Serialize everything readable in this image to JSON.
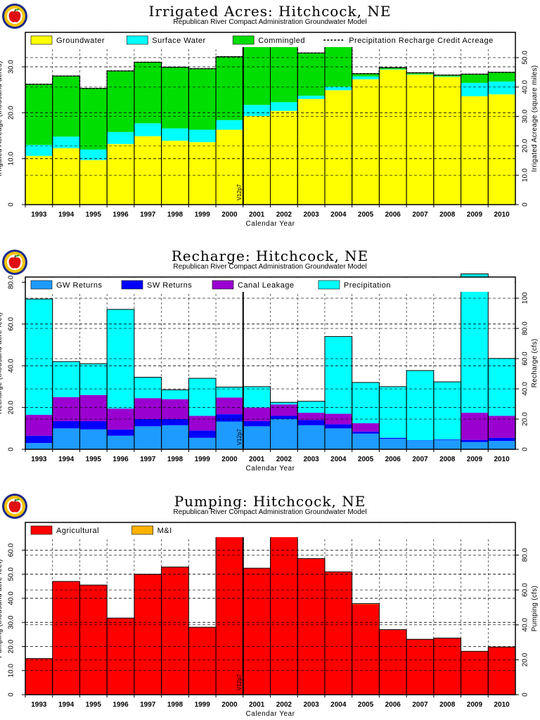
{
  "charts_meta": {
    "model_name": "Republican River Compact Administration Groundwater Model",
    "xlabel": "Calendar Year",
    "marker_text": "V12p7"
  },
  "chart_data": [
    {
      "id": "irrigated",
      "type": "area",
      "stacked": true,
      "title": "Irrigated Acres: Hitchcock, NE",
      "subtitle": "Republican River Compact Administration Groundwater Model",
      "xlabel": "Calendar Year",
      "ylabel": "Irrigated Acreage (thousand acres)",
      "ylabel_right": "Irrigated Acreage (square miles)",
      "categories": [
        "1993",
        "1994",
        "1995",
        "1996",
        "1997",
        "1998",
        "1999",
        "2000",
        "2001",
        "2002",
        "2003",
        "2004",
        "2005",
        "2006",
        "2007",
        "2008",
        "2009",
        "2010"
      ],
      "ylim": [
        0,
        37.5
      ],
      "yticks": [
        0,
        10.0,
        20.0,
        30.0
      ],
      "ytick_labels": [
        "0",
        "10.0",
        "20.0",
        "30.0"
      ],
      "y2lim": [
        0,
        58.6
      ],
      "y2ticks": [
        0,
        10.0,
        20.0,
        30.0,
        40.0,
        50.0
      ],
      "y2tick_labels": [
        "0",
        "10.0",
        "20.0",
        "30.0",
        "40.0",
        "50.0"
      ],
      "grid": true,
      "legend_position": "top",
      "series": [
        {
          "name": "Groundwater",
          "color": "#ffff00",
          "values": [
            10.6,
            12.3,
            9.7,
            13.2,
            14.9,
            13.9,
            13.6,
            16.3,
            19.3,
            20.4,
            23.0,
            24.9,
            27.3,
            29.4,
            28.3,
            27.8,
            23.6,
            24.0
          ]
        },
        {
          "name": "Surface Water",
          "color": "#00ffff",
          "values": [
            2.4,
            2.5,
            2.3,
            2.6,
            2.8,
            2.7,
            2.7,
            2.1,
            2.4,
            1.9,
            0.7,
            0.8,
            0.6,
            0.1,
            0.1,
            0.1,
            2.9,
            2.8
          ]
        },
        {
          "name": "Commingled",
          "color": "#00dd00",
          "values": [
            13.2,
            13.2,
            13.3,
            13.3,
            13.3,
            13.3,
            13.3,
            13.8,
            13.3,
            12.7,
            9.3,
            9.3,
            0.6,
            0.3,
            0.3,
            0.3,
            1.9,
            2.0
          ]
        }
      ],
      "line_series": {
        "name": "Precipitation Recharge Credit Acreage",
        "color": "#000000",
        "values": [
          26.2,
          28.0,
          25.3,
          29.1,
          31.0,
          29.9,
          29.6,
          32.2,
          35.0,
          35.0,
          33.0,
          35.0,
          28.5,
          29.8,
          28.7,
          28.2,
          28.4,
          28.8
        ]
      },
      "marker_year": "2001",
      "marker_text": "V12p7"
    },
    {
      "id": "recharge",
      "type": "area",
      "stacked": true,
      "title": "Recharge: Hitchcock, NE",
      "subtitle": "Republican River Compact Administration Groundwater Model",
      "xlabel": "Calendar Year",
      "ylabel": "Recharge (thousand acre-feet)",
      "ylabel_right": "Recharge (cfs)",
      "categories": [
        "1993",
        "1994",
        "1995",
        "1996",
        "1997",
        "1998",
        "1999",
        "2000",
        "2001",
        "2002",
        "2003",
        "2004",
        "2005",
        "2006",
        "2007",
        "2008",
        "2009",
        "2010"
      ],
      "ylim": [
        0,
        82.5
      ],
      "yticks": [
        0,
        20.0,
        40.0,
        60.0,
        80.0
      ],
      "ytick_labels": [
        "0",
        "20.0",
        "40.0",
        "60.0",
        "80.0"
      ],
      "y2lim": [
        0,
        114
      ],
      "y2ticks": [
        0,
        20.0,
        40.0,
        60.0,
        80.0,
        100
      ],
      "y2tick_labels": [
        "0",
        "20.0",
        "40.0",
        "60.0",
        "80.0",
        "100"
      ],
      "grid": true,
      "legend_position": "top",
      "series": [
        {
          "name": "GW Returns",
          "color": "#1e9bff",
          "values": [
            3.0,
            10.0,
            9.5,
            6.5,
            11.0,
            11.5,
            5.5,
            13.3,
            11.0,
            14.5,
            11.5,
            10.0,
            7.5,
            5.0,
            4.0,
            4.5,
            3.5,
            4.0
          ]
        },
        {
          "name": "SW Returns",
          "color": "#0000ff",
          "values": [
            3.5,
            3.5,
            4.0,
            3.0,
            3.5,
            3.0,
            3.5,
            3.5,
            2.5,
            1.5,
            2.5,
            2.0,
            1.0,
            0.5,
            0.2,
            0.3,
            1.0,
            1.5
          ]
        },
        {
          "name": "Canal Leakage",
          "color": "#9a00d0",
          "values": [
            10.0,
            11.5,
            12.5,
            10.0,
            10.0,
            9.5,
            7.0,
            8.0,
            6.5,
            5.5,
            3.5,
            5.0,
            4.0,
            0,
            0,
            0,
            13.0,
            10.5
          ]
        },
        {
          "name": "Precipitation",
          "color": "#00ffff",
          "values": [
            55.5,
            17.0,
            15.0,
            47.5,
            10.0,
            4.5,
            18.0,
            5.0,
            10.0,
            1.0,
            5.5,
            37.0,
            19.5,
            24.5,
            33.5,
            27.5,
            66.5,
            27.5
          ]
        }
      ],
      "marker_year": "2001",
      "marker_text": "V12p7"
    },
    {
      "id": "pumping",
      "type": "area",
      "stacked": true,
      "title": "Pumping: Hitchcock, NE",
      "subtitle": "Republican River Compact Administration Groundwater Model",
      "xlabel": "Calendar Year",
      "ylabel": "Pumping (thousand acre-feet)",
      "ylabel_right": "Pumping (cfs)",
      "categories": [
        "1993",
        "1994",
        "1995",
        "1996",
        "1997",
        "1998",
        "1999",
        "2000",
        "2001",
        "2002",
        "2003",
        "2004",
        "2005",
        "2006",
        "2007",
        "2008",
        "2009",
        "2010"
      ],
      "ylim": [
        0,
        71.5
      ],
      "yticks": [
        0,
        10.0,
        20.0,
        30.0,
        40.0,
        50.0,
        60.0
      ],
      "ytick_labels": [
        "0",
        "10.0",
        "20.0",
        "30.0",
        "40.0",
        "50.0",
        "60.0"
      ],
      "y2lim": [
        0,
        98.7
      ],
      "y2ticks": [
        0,
        20.0,
        40.0,
        60.0,
        80.0
      ],
      "y2tick_labels": [
        "0",
        "20.0",
        "40.0",
        "60.0",
        "80.0"
      ],
      "grid": true,
      "legend_position": "top",
      "series": [
        {
          "name": "Agricultural",
          "color": "#ff0000",
          "values": [
            15.0,
            47.0,
            45.5,
            31.8,
            50.0,
            53.0,
            28.0,
            65.5,
            52.5,
            69.5,
            56.5,
            51.0,
            37.5,
            27.0,
            23.0,
            23.5,
            18.0,
            19.8
          ]
        },
        {
          "name": "M&I",
          "color": "#ffb300",
          "values": [
            0,
            0,
            0,
            0,
            0,
            0,
            0,
            0,
            0,
            0,
            0,
            0,
            0.3,
            0,
            0,
            0,
            0,
            0
          ]
        }
      ],
      "marker_year": "2001",
      "marker_text": "V12p7"
    }
  ]
}
